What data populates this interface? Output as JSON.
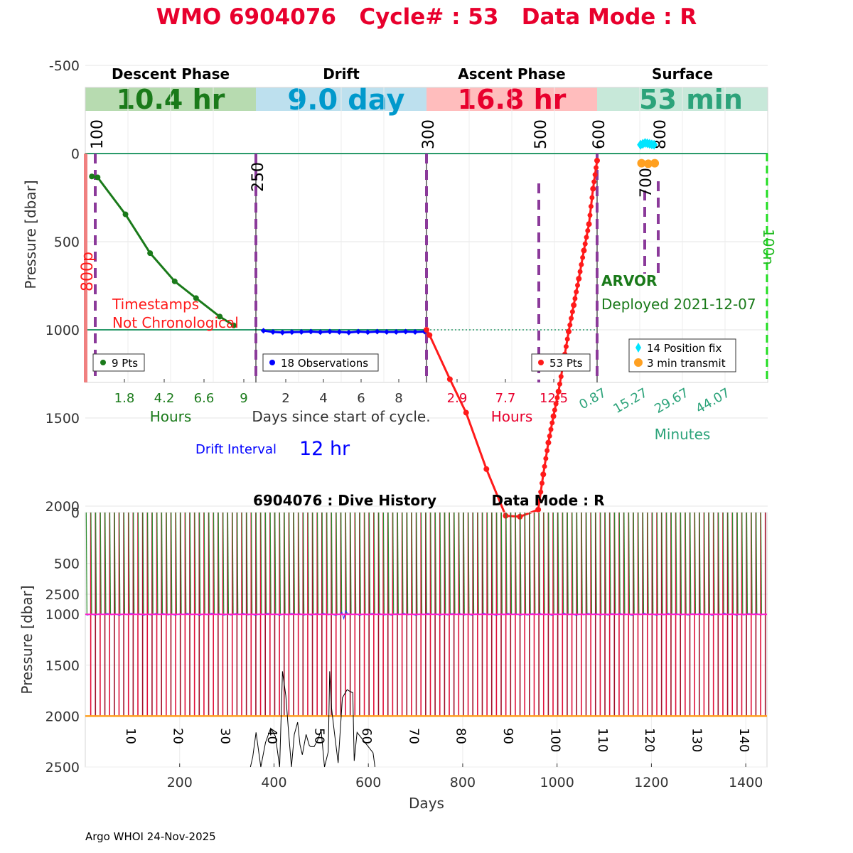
{
  "title": "WMO 6904076   Cycle# : 53   Data Mode : R",
  "colors": {
    "title": "#e8002d",
    "descent": "#1a7a1a",
    "drift": "#0000ff",
    "ascent": "#ff1a1a",
    "surface": "#2ca37a",
    "phase_line": "#8b3a9a",
    "descent_box": "#b7dbb0",
    "drift_box": "#bde0ee",
    "ascent_box": "#ffbdbd",
    "surface_box": "#c7e8d9"
  },
  "phases": [
    {
      "name": "Descent Phase",
      "duration": "10.4 hr",
      "axis_label": "Hours",
      "ticks": [
        "1.8",
        "4.2",
        "6.6",
        "9"
      ],
      "legend": "9 Pts"
    },
    {
      "name": "Drift",
      "duration": "9.0 day",
      "axis_label": "Days since start of cycle.",
      "ticks": [
        "2",
        "4",
        "6",
        "8"
      ],
      "legend": "18 Observations"
    },
    {
      "name": "Ascent Phase",
      "duration": "16.8 hr",
      "axis_label": "Hours",
      "ticks": [
        "2.9",
        "7.7",
        "12.5"
      ],
      "legend": "53 Pts"
    },
    {
      "name": "Surface",
      "duration": "53 min",
      "axis_label": "Minutes",
      "ticks": [
        "0.87",
        "15.27",
        "29.67",
        "44.07"
      ],
      "legend": [
        "14 Position fix",
        "3 min transmit"
      ]
    }
  ],
  "markers": [
    "100",
    "250",
    "300",
    "500",
    "600",
    "700",
    "800",
    "800p",
    "100n"
  ],
  "annotations": {
    "timestamps": [
      "Timestamps",
      "Not Chronological"
    ],
    "float_type": "ARVOR",
    "deployed": "Deployed 2021-12-07",
    "drift_interval_label": "Drift Interval",
    "drift_interval_value": "12 hr"
  },
  "footer": "Argo WHOI 24-Nov-2025",
  "chart_data": [
    {
      "type": "line",
      "title": "WMO 6904076   Cycle# : 53   Data Mode : R",
      "ylabel": "Pressure [dbar]",
      "ylim": [
        -800,
        2600
      ],
      "yticks": [
        "-500",
        "0",
        "500",
        "1000",
        "1500",
        "2000",
        "2500"
      ],
      "ytick_values": [
        -500,
        0,
        500,
        1000,
        1500,
        2000,
        2500
      ],
      "series": [
        {
          "name": "Descent",
          "x_units": "hours",
          "xlim": [
            0,
            10.4
          ],
          "x": [
            0.4,
            0.75,
            2.45,
            3.95,
            5.45,
            6.75,
            8.2,
            9.05
          ],
          "y": [
            130,
            135,
            345,
            565,
            725,
            820,
            925,
            975
          ]
        },
        {
          "name": "Drift",
          "x_units": "days",
          "xlim": [
            0,
            9.0
          ],
          "x": [
            0.4,
            0.9,
            1.4,
            1.9,
            2.4,
            2.9,
            3.4,
            3.9,
            4.4,
            4.9,
            5.4,
            5.9,
            6.4,
            6.9,
            7.4,
            7.9,
            8.4,
            8.9
          ],
          "y": [
            1005,
            1012,
            1015,
            1013,
            1012,
            1010,
            1013,
            1010,
            1012,
            1015,
            1010,
            1013,
            1010,
            1012,
            1012,
            1010,
            1012,
            1010
          ]
        },
        {
          "name": "Ascent",
          "x_units": "hours",
          "xlim": [
            0,
            16.8
          ],
          "x": [
            0.0,
            0.3,
            2.3,
            3.9,
            5.9,
            7.8,
            9.2,
            11.0,
            11.5,
            12.0,
            12.5,
            13.0,
            13.5,
            14.0,
            14.5,
            15.0,
            15.5,
            16.0,
            16.4,
            16.8
          ],
          "y": [
            1000,
            1030,
            1280,
            1470,
            1790,
            2055,
            2060,
            2020,
            1820,
            1640,
            1490,
            1350,
            1180,
            1010,
            860,
            710,
            550,
            400,
            200,
            40
          ]
        },
        {
          "name": "Surface position fix",
          "x_units": "minutes",
          "xlim": [
            0,
            53
          ],
          "x": [
            13.5,
            14.2,
            14.9,
            15.6,
            16.3,
            17.0,
            17.7
          ],
          "y": [
            -50,
            -55,
            -60,
            -58,
            -55,
            -52,
            -50
          ]
        },
        {
          "name": "Surface transmit",
          "x_units": "minutes",
          "xlim": [
            0,
            53
          ],
          "x": [
            13.8,
            15.9,
            17.9
          ],
          "y": [
            55,
            58,
            55
          ]
        }
      ],
      "hlines": [
        0,
        2000
      ]
    },
    {
      "type": "line",
      "title": "6904076 : Dive History",
      "title_right": "Data Mode : R",
      "xlabel": "Days",
      "ylabel": "Pressure [dbar]",
      "xlim": [
        0,
        1445
      ],
      "ylim": [
        0,
        2500
      ],
      "xticks": [
        "200",
        "400",
        "600",
        "800",
        "1000",
        "1200",
        "1400"
      ],
      "xtick_values": [
        200,
        400,
        600,
        800,
        1000,
        1200,
        1400
      ],
      "yticks": [
        "0",
        "500",
        "1000",
        "1500",
        "2000",
        "2500"
      ],
      "ytick_values": [
        0,
        500,
        1000,
        1500,
        2000,
        2500
      ],
      "cycle_labels": [
        "10",
        "20",
        "30",
        "40",
        "50",
        "60",
        "70",
        "80",
        "90",
        "100",
        "110",
        "120",
        "130",
        "140"
      ],
      "cycle_label_days": [
        80,
        180,
        280,
        380,
        480,
        580,
        680,
        780,
        880,
        980,
        1080,
        1180,
        1280,
        1380
      ],
      "cycles": 144,
      "cycle_interval_days": 10,
      "park_pressure": 1000,
      "profile_pressure": 2000,
      "bottom_trace": {
        "x": [
          350,
          355,
          362,
          372,
          382,
          393,
          403,
          412,
          418,
          425,
          431,
          437,
          443,
          450,
          455,
          460,
          468,
          475,
          478,
          485,
          492,
          500,
          507,
          515,
          518,
          522,
          528,
          536,
          545,
          555,
          562,
          567,
          570,
          576,
          610,
          614
        ],
        "y": [
          2500,
          2400,
          2160,
          2500,
          2260,
          2120,
          2200,
          2500,
          1560,
          1800,
          2160,
          2500,
          2180,
          2060,
          2280,
          2380,
          2180,
          2290,
          2300,
          2300,
          2240,
          2140,
          2500,
          2350,
          1560,
          1920,
          2160,
          2460,
          1820,
          1740,
          1760,
          1770,
          2440,
          2160,
          2360,
          2500
        ]
      }
    }
  ]
}
